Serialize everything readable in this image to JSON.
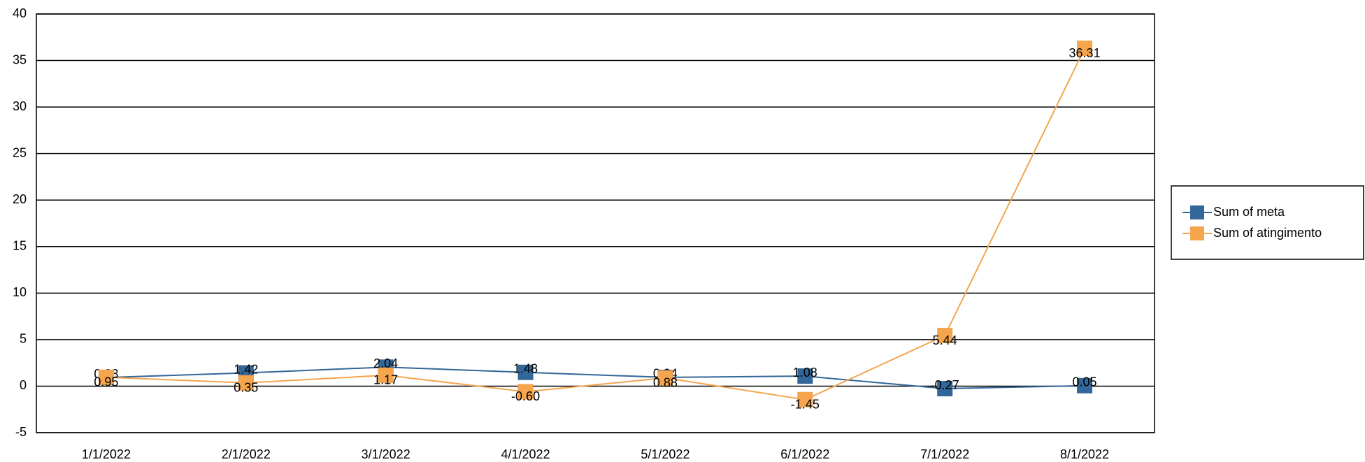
{
  "chart_data": {
    "type": "line",
    "categories": [
      "1/1/2022",
      "2/1/2022",
      "3/1/2022",
      "4/1/2022",
      "5/1/2022",
      "6/1/2022",
      "7/1/2022",
      "8/1/2022"
    ],
    "series": [
      {
        "name": "Sum of meta",
        "color": "#336699",
        "values": [
          0.93,
          1.42,
          2.04,
          1.48,
          0.94,
          1.08,
          -0.27,
          0.05
        ],
        "value_labels": [
          "0.93",
          "1.42",
          "2.04",
          "1.48",
          "0.94",
          "1.08",
          "-0.27",
          "0.05"
        ]
      },
      {
        "name": "Sum of atingimento",
        "color": "#f4a54e",
        "values": [
          0.95,
          0.35,
          1.17,
          -0.6,
          0.88,
          -1.45,
          5.44,
          36.31
        ],
        "value_labels": [
          "0.95",
          "0.35",
          "1.17",
          "-0.60",
          "0.88",
          "-1.45",
          "5.44",
          "36.31"
        ]
      }
    ],
    "ylim": [
      -5,
      40
    ],
    "yticks": [
      -5,
      0,
      5,
      10,
      15,
      20,
      25,
      30,
      35,
      40
    ],
    "grid": true,
    "legend": "right"
  }
}
